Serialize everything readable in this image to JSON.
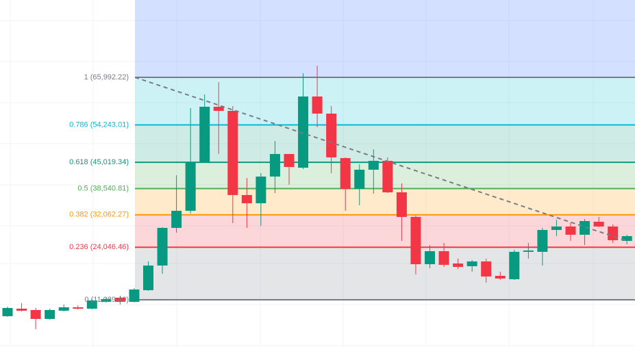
{
  "chart_data": {
    "type": "candlestick",
    "ylim": [
      -570,
      85080
    ],
    "up_color": "#089981",
    "down_color": "#f23645",
    "fib_levels": [
      {
        "label": "1 (65,992.22)",
        "value": 65992.22,
        "color": "#787b86"
      },
      {
        "label": "0.786 (54,243.01)",
        "value": 54243.01,
        "color": "#00bcd4"
      },
      {
        "label": "0.618 (45,019.34)",
        "value": 45019.34,
        "color": "#089981"
      },
      {
        "label": "0.5 (38,540.81)",
        "value": 38540.81,
        "color": "#4caf50"
      },
      {
        "label": "0.382 (32,062.27)",
        "value": 32062.27,
        "color": "#ff9800"
      },
      {
        "label": "0.236 (24,046.46)",
        "value": 24046.46,
        "color": "#f23645"
      },
      {
        "label": "0 (11,089.40)",
        "value": 11089.4,
        "color": "#787b86"
      }
    ],
    "open": [
      7040,
      8890,
      8560,
      6360,
      8390,
      9230,
      8890,
      10580,
      11600,
      10580,
      13450,
      19540,
      28830,
      33050,
      45045,
      58730,
      57710,
      36940,
      34910,
      41500,
      47070,
      43690,
      61260,
      57040,
      46060,
      38460,
      43190,
      45380,
      37610,
      31530,
      19870,
      23080,
      20040,
      19370,
      20550,
      17000,
      16160,
      22920,
      22920,
      28320,
      29170,
      27140,
      30350,
      29170,
      25620
    ],
    "high": [
      9400,
      10250,
      9060,
      8890,
      9910,
      9740,
      11260,
      11600,
      12100,
      13960,
      20550,
      29000,
      41840,
      58390,
      61770,
      64810,
      58900,
      41160,
      42340,
      50280,
      47070,
      67000,
      68860,
      58900,
      46230,
      44540,
      48250,
      46230,
      39810,
      31870,
      24600,
      25110,
      21230,
      20890,
      21230,
      18020,
      23420,
      25110,
      28830,
      30850,
      30180,
      31020,
      31530,
      29670,
      27140
    ],
    "low": [
      6870,
      8220,
      3830,
      6190,
      8220,
      8730,
      8730,
      10410,
      9910,
      10410,
      13290,
      17510,
      27650,
      32380,
      44880,
      47070,
      30010,
      28830,
      29330,
      37440,
      39470,
      43360,
      53660,
      42340,
      33050,
      34400,
      37270,
      37440,
      25620,
      17340,
      18860,
      19200,
      18690,
      18020,
      15310,
      15990,
      15990,
      21230,
      19540,
      26800,
      25620,
      24600,
      29000,
      25110,
      24770
    ],
    "close": [
      9060,
      8390,
      6360,
      8560,
      9230,
      8890,
      10920,
      11260,
      10580,
      13620,
      19540,
      28830,
      33050,
      45045,
      58730,
      57710,
      36940,
      34910,
      41500,
      47070,
      43860,
      61260,
      57040,
      46230,
      38460,
      43190,
      45380,
      37610,
      31530,
      19870,
      23080,
      19710,
      19200,
      20550,
      16830,
      16330,
      22920,
      23250,
      28320,
      29170,
      27140,
      30520,
      29170,
      25790,
      26800
    ]
  }
}
